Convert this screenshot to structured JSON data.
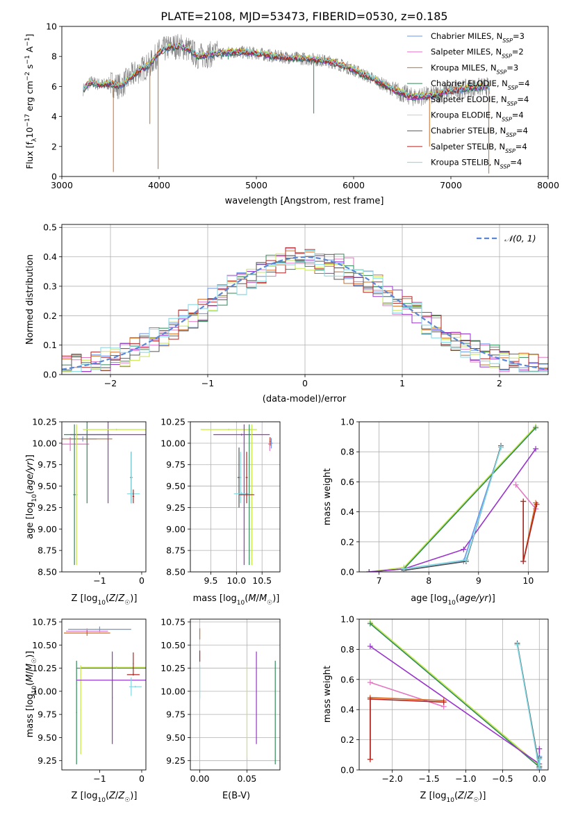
{
  "figure_title": "PLATE=2108, MJD=53473, FIBERID=0530, z=0.185",
  "series_styles": [
    {
      "name": "Chabrier MILES, N_SSP=3",
      "label": "Chabrier MILES, N",
      "n": "3",
      "color": "#6495ed"
    },
    {
      "name": "Salpeter MILES, N_SSP=2",
      "label": "Salpeter MILES, N",
      "n": "2",
      "color": "#e377c2"
    },
    {
      "name": "Kroupa MILES, N_SSP=3",
      "label": "Kroupa MILES, N",
      "n": "3",
      "color": "#d2691e"
    },
    {
      "name": "Chabrier ELODIE, N_SSP=4",
      "label": "Chabrier ELODIE, N",
      "n": "4",
      "color": "#2e8b57"
    },
    {
      "name": "Salpeter ELODIE, N_SSP=4",
      "label": "Salpeter ELODIE, N",
      "n": "4",
      "color": "#9932cc"
    },
    {
      "name": "Kroupa ELODIE, N_SSP=4",
      "label": "Kroupa ELODIE, N",
      "n": "4",
      "color": "#c5e84a"
    },
    {
      "name": "Chabrier STELIB, N_SSP=4",
      "label": "Chabrier STELIB, N",
      "n": "4",
      "color": "#555555"
    },
    {
      "name": "Salpeter STELIB, N_SSP=4",
      "label": "Salpeter STELIB, N",
      "n": "4",
      "color": "#b22222"
    },
    {
      "name": "Kroupa STELIB, N_SSP=4",
      "label": "Kroupa STELIB, N",
      "n": "4",
      "color": "#7fd7e0"
    }
  ],
  "chart_data": [
    {
      "id": "spectrum",
      "type": "line",
      "title": "PLATE=2108, MJD=53473, FIBERID=0530, z=0.185",
      "xlabel": "wavelength [Angstrom, rest frame]",
      "ylabel_main": "Flux [f",
      "xlim": [
        3000,
        8000
      ],
      "ylim": [
        0,
        10
      ],
      "xticks": [
        3000,
        4000,
        5000,
        6000,
        7000,
        8000
      ],
      "yticks": [
        0,
        2,
        4,
        6,
        8,
        10
      ],
      "grid": false,
      "legend": "upper right",
      "data_color": "#808080",
      "continuum": {
        "x": [
          3220,
          3300,
          3400,
          3500,
          3600,
          3700,
          3800,
          3900,
          4000,
          4100,
          4200,
          4300,
          4400,
          4500,
          4600,
          4800,
          5000,
          5200,
          5400,
          5600,
          5800,
          6000,
          6200,
          6400,
          6600,
          6800,
          7000,
          7200,
          7400
        ],
        "y": [
          5.8,
          6.3,
          6.1,
          6.2,
          6.0,
          6.6,
          7.1,
          7.4,
          8.3,
          8.6,
          8.7,
          8.5,
          8.0,
          8.1,
          8.2,
          8.3,
          8.2,
          8.0,
          7.9,
          7.8,
          7.6,
          7.1,
          6.5,
          5.8,
          5.3,
          5.4,
          5.7,
          5.9,
          6.0
        ]
      }
    },
    {
      "id": "residuals",
      "type": "histogram",
      "xlabel": "(data-model)/error",
      "ylabel": "Normed distribution",
      "xlim": [
        -2.5,
        2.5
      ],
      "ylim": [
        0,
        0.51
      ],
      "xticks": [
        -2,
        -1,
        0,
        1,
        2
      ],
      "yticks": [
        0.0,
        0.1,
        0.2,
        0.3,
        0.4,
        0.5
      ],
      "grid": true,
      "legend": "upper right",
      "reference_curve_label": "𝒩(0, 1)",
      "reference_color": "#5b86d6",
      "bin_width": 0.1
    },
    {
      "id": "z_vs_age",
      "type": "errorbar",
      "xlabel": "Z [log10(Z/Z☉)]",
      "ylabel": "age [log10(age/yr)]",
      "xlim": [
        -1.9,
        0.1
      ],
      "ylim": [
        8.5,
        10.25
      ],
      "xticks": [
        -1,
        0
      ],
      "yticks": [
        8.5,
        8.75,
        9.0,
        9.25,
        9.5,
        9.75,
        10.0,
        10.25
      ],
      "grid": false,
      "points": [
        {
          "s": 0,
          "x": -1.4,
          "xerr": 0.33,
          "y": 10.05,
          "yerr": 0.03
        },
        {
          "s": 1,
          "x": -1.7,
          "xerr": 0.45,
          "y": 9.99,
          "yerr": 0.08
        },
        {
          "s": 2,
          "x": -1.3,
          "xerr": 0.6,
          "y": 10.05,
          "yerr": 0.04
        },
        {
          "s": 3,
          "x": -1.3,
          "xerr": 0.55,
          "y": 10.1,
          "yerr": 0.8
        },
        {
          "s": 4,
          "x": -0.8,
          "xerr": 0.9,
          "y": 10.1,
          "yerr": 0.8
        },
        {
          "s": 5,
          "x": -0.6,
          "xerr": 0.8,
          "y": 10.16,
          "yerr": 0.01
        },
        {
          "s": 5,
          "x": -1.55,
          "xerr": 0.03,
          "y": 9.4,
          "yerr": 0.82
        },
        {
          "s": 3,
          "x": -1.6,
          "xerr": 0.03,
          "y": 9.4,
          "yerr": 0.82
        },
        {
          "s": 6,
          "x": -0.25,
          "xerr": 0.03,
          "y": 9.6,
          "yerr": 0.3
        },
        {
          "s": 8,
          "x": -0.2,
          "xerr": 0.15,
          "y": 9.41,
          "yerr": 0.02
        },
        {
          "s": 8,
          "x": -0.25,
          "xerr": 0.02,
          "y": 9.6,
          "yerr": 0.3
        },
        {
          "s": 7,
          "x": -0.2,
          "xerr": 0.02,
          "y": 9.38,
          "yerr": 0.08
        }
      ]
    },
    {
      "id": "mass_vs_age",
      "type": "errorbar",
      "xlabel": "mass [log10(M/M☉)]",
      "ylabel": "",
      "xlim": [
        9.1,
        10.85
      ],
      "ylim": [
        8.5,
        10.25
      ],
      "xticks": [
        9.5,
        10.0,
        10.5
      ],
      "yticks": [
        8.5,
        8.75,
        9.0,
        9.25,
        9.5,
        9.75,
        10.0,
        10.25
      ],
      "grid": true,
      "points": [
        {
          "s": 5,
          "x": 9.85,
          "xerr": 0.55,
          "y": 10.16,
          "yerr": 0.01
        },
        {
          "s": 4,
          "x": 10.1,
          "xerr": 0.55,
          "y": 10.1,
          "yerr": 0.01
        },
        {
          "s": 3,
          "x": 10.25,
          "xerr": 0.02,
          "y": 9.4,
          "yerr": 0.82
        },
        {
          "s": 4,
          "x": 10.15,
          "xerr": 0.02,
          "y": 9.4,
          "yerr": 0.82
        },
        {
          "s": 5,
          "x": 10.3,
          "xerr": 0.02,
          "y": 9.4,
          "yerr": 0.82
        },
        {
          "s": 6,
          "x": 10.05,
          "xerr": 0.03,
          "y": 9.6,
          "yerr": 0.35
        },
        {
          "s": 8,
          "x": 10.1,
          "xerr": 0.15,
          "y": 9.41,
          "yerr": 0.02
        },
        {
          "s": 8,
          "x": 10.08,
          "xerr": 0.02,
          "y": 9.6,
          "yerr": 0.3
        },
        {
          "s": 7,
          "x": 10.2,
          "xerr": 0.15,
          "y": 9.4,
          "yerr": 0.02
        },
        {
          "s": 7,
          "x": 10.2,
          "xerr": 0.02,
          "y": 9.6,
          "yerr": 0.3
        },
        {
          "s": 0,
          "x": 10.68,
          "xerr": 0.03,
          "y": 10.0,
          "yerr": 0.06
        },
        {
          "s": 1,
          "x": 10.65,
          "xerr": 0.03,
          "y": 9.99,
          "yerr": 0.08
        },
        {
          "s": 2,
          "x": 10.66,
          "xerr": 0.02,
          "y": 10.02,
          "yerr": 0.05
        }
      ]
    },
    {
      "id": "age_vs_weight",
      "type": "line",
      "xlabel": "age [log10(age/yr)]",
      "ylabel": "mass weight",
      "xlim": [
        6.6,
        10.4
      ],
      "ylim": [
        0.0,
        1.0
      ],
      "xticks": [
        7,
        8,
        9,
        10
      ],
      "yticks": [
        0.0,
        0.2,
        0.4,
        0.6,
        0.8,
        1.0
      ],
      "grid": true,
      "series": [
        {
          "s": 5,
          "x": [
            6.8,
            7.5,
            10.15
          ],
          "y": [
            0.0,
            0.03,
            0.97
          ]
        },
        {
          "s": 3,
          "x": [
            6.8,
            7.5,
            10.15
          ],
          "y": [
            0.0,
            0.02,
            0.96
          ]
        },
        {
          "s": 4,
          "x": [
            6.8,
            7.5,
            8.7,
            10.15
          ],
          "y": [
            0.0,
            0.02,
            0.15,
            0.82
          ]
        },
        {
          "s": 0,
          "x": [
            7.5,
            8.7,
            9.45
          ],
          "y": [
            0.01,
            0.07,
            0.83
          ]
        },
        {
          "s": 6,
          "x": [
            7.5,
            8.75,
            9.45
          ],
          "y": [
            0.01,
            0.07,
            0.84
          ]
        },
        {
          "s": 8,
          "x": [
            7.5,
            8.75,
            9.45
          ],
          "y": [
            0.02,
            0.08,
            0.83
          ]
        },
        {
          "s": 1,
          "x": [
            9.75,
            10.15
          ],
          "y": [
            0.58,
            0.42
          ]
        },
        {
          "s": 2,
          "x": [
            9.9,
            9.9,
            10.15
          ],
          "y": [
            0.47,
            0.07,
            0.46
          ]
        },
        {
          "s": 7,
          "x": [
            9.9,
            9.9,
            10.17
          ],
          "y": [
            0.47,
            0.07,
            0.45
          ]
        }
      ]
    },
    {
      "id": "z_vs_mass",
      "type": "errorbar",
      "xlabel": "Z [log10(Z/Z☉)]",
      "ylabel": "mass [log10(M/M☉)]",
      "xlim": [
        -1.9,
        0.1
      ],
      "ylim": [
        9.15,
        10.78
      ],
      "xticks": [
        -1,
        0
      ],
      "yticks": [
        9.25,
        9.5,
        9.75,
        10.0,
        10.25,
        10.5,
        10.75
      ],
      "grid": false,
      "points": [
        {
          "s": 0,
          "x": -1.0,
          "xerr": 0.75,
          "y": 10.67,
          "yerr": 0.03
        },
        {
          "s": 1,
          "x": -1.3,
          "xerr": 0.5,
          "y": 10.65,
          "yerr": 0.03
        },
        {
          "s": 2,
          "x": -1.3,
          "xerr": 0.55,
          "y": 10.63,
          "yerr": 0.03
        },
        {
          "s": 3,
          "x": -0.7,
          "xerr": 0.85,
          "y": 10.25,
          "yerr": 0.01
        },
        {
          "s": 3,
          "x": -1.55,
          "xerr": 0.01,
          "y": 9.77,
          "yerr": 0.56
        },
        {
          "s": 5,
          "x": -1.45,
          "xerr": 0.01,
          "y": 9.8,
          "yerr": 0.48
        },
        {
          "s": 5,
          "x": -0.6,
          "xerr": 0.85,
          "y": 10.26,
          "yerr": 0.01
        },
        {
          "s": 4,
          "x": -0.7,
          "xerr": 0.85,
          "y": 10.12,
          "yerr": 0.01
        },
        {
          "s": 4,
          "x": -0.7,
          "xerr": 0.01,
          "y": 9.93,
          "yerr": 0.5
        },
        {
          "s": 7,
          "x": -0.2,
          "xerr": 0.15,
          "y": 10.18,
          "yerr": 0.01
        },
        {
          "s": 7,
          "x": -0.2,
          "xerr": 0.01,
          "y": 10.3,
          "yerr": 0.12
        },
        {
          "s": 8,
          "x": -0.15,
          "xerr": 0.15,
          "y": 10.05,
          "yerr": 0.01
        },
        {
          "s": 8,
          "x": -0.25,
          "xerr": 0.01,
          "y": 10.05,
          "yerr": 0.1
        }
      ]
    },
    {
      "id": "ebv_vs_mass",
      "type": "errorbar",
      "xlabel": "E(B-V)",
      "ylabel": "",
      "xlim": [
        -0.01,
        0.085
      ],
      "ylim": [
        9.15,
        10.78
      ],
      "xticks": [
        0.0,
        0.05
      ],
      "yticks": [
        9.25,
        9.5,
        9.75,
        10.0,
        10.25,
        10.5,
        10.75
      ],
      "grid": true,
      "points": [
        {
          "s": 2,
          "x": 0.0,
          "xerr": 0.0,
          "y": 10.62,
          "yerr": 0.06
        },
        {
          "s": 7,
          "x": 0.0,
          "xerr": 0.0,
          "y": 10.38,
          "yerr": 0.06
        },
        {
          "s": 8,
          "x": 0.0,
          "xerr": 0.0,
          "y": 10.1,
          "yerr": 0.18
        },
        {
          "s": 5,
          "x": 0.05,
          "xerr": 0.0,
          "y": 9.78,
          "yerr": 0.5
        },
        {
          "s": 4,
          "x": 0.06,
          "xerr": 0.0,
          "y": 9.93,
          "yerr": 0.5
        },
        {
          "s": 3,
          "x": 0.08,
          "xerr": 0.0,
          "y": 9.77,
          "yerr": 0.56
        }
      ]
    },
    {
      "id": "z_vs_weight",
      "type": "line",
      "xlabel": "Z [log10(Z/Z☉)]",
      "ylabel": "mass weight",
      "xlim": [
        -2.45,
        0.12
      ],
      "ylim": [
        0.0,
        1.0
      ],
      "xticks": [
        -2.0,
        -1.5,
        -1.0,
        -0.5,
        0.0
      ],
      "yticks": [
        0.0,
        0.2,
        0.4,
        0.6,
        0.8,
        1.0
      ],
      "grid": true,
      "series": [
        {
          "s": 5,
          "x": [
            -2.3,
            0.0
          ],
          "y": [
            0.98,
            0.03
          ]
        },
        {
          "s": 3,
          "x": [
            -2.3,
            0.0
          ],
          "y": [
            0.97,
            0.02
          ]
        },
        {
          "s": 4,
          "x": [
            -2.3,
            0.0,
            0.0
          ],
          "y": [
            0.82,
            0.04,
            0.14
          ]
        },
        {
          "s": 1,
          "x": [
            -2.3,
            -1.3
          ],
          "y": [
            0.58,
            0.42
          ]
        },
        {
          "s": 2,
          "x": [
            -2.3,
            -2.3,
            -1.3
          ],
          "y": [
            0.07,
            0.48,
            0.46
          ]
        },
        {
          "s": 7,
          "x": [
            -2.3,
            -2.3,
            -1.3
          ],
          "y": [
            0.07,
            0.47,
            0.45
          ]
        },
        {
          "s": 0,
          "x": [
            -0.3,
            0.0,
            0.0
          ],
          "y": [
            0.83,
            0.01,
            0.09
          ]
        },
        {
          "s": 6,
          "x": [
            -0.3,
            0.0,
            0.0
          ],
          "y": [
            0.84,
            0.02,
            0.08
          ]
        },
        {
          "s": 8,
          "x": [
            -0.3,
            0.0,
            0.0
          ],
          "y": [
            0.83,
            0.0,
            0.07
          ]
        }
      ]
    }
  ]
}
